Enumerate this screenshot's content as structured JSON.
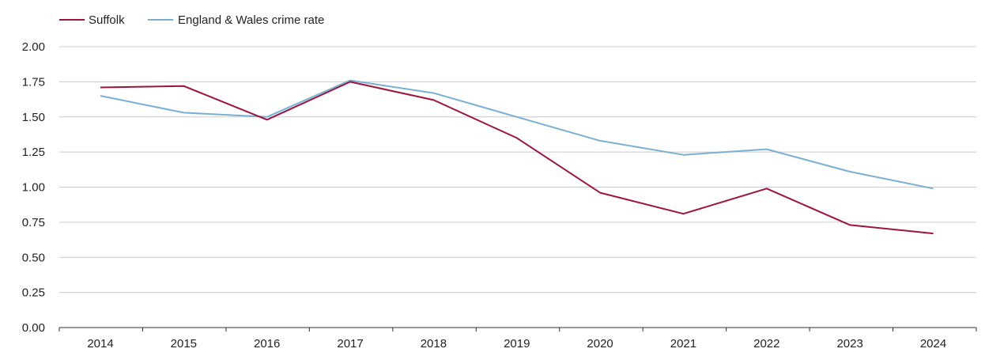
{
  "chart_data": {
    "type": "line",
    "title": "",
    "xlabel": "",
    "ylabel": "",
    "x": [
      "2014",
      "2015",
      "2016",
      "2017",
      "2018",
      "2019",
      "2020",
      "2021",
      "2022",
      "2023",
      "2024"
    ],
    "ylim": [
      0,
      2
    ],
    "yticks": [
      "0.00",
      "0.25",
      "0.50",
      "0.75",
      "1.00",
      "1.25",
      "1.50",
      "1.75",
      "2.00"
    ],
    "grid": true,
    "legend_position": "top-left",
    "series": [
      {
        "name": "Suffolk",
        "color": "#a0133a",
        "values": [
          1.71,
          1.72,
          1.48,
          1.75,
          1.62,
          1.35,
          0.96,
          0.81,
          0.99,
          0.73,
          0.67
        ]
      },
      {
        "name": "England & Wales crime rate",
        "color": "#78b0d4",
        "values": [
          1.65,
          1.53,
          1.5,
          1.76,
          1.67,
          1.5,
          1.33,
          1.23,
          1.27,
          1.11,
          0.99
        ]
      }
    ]
  }
}
